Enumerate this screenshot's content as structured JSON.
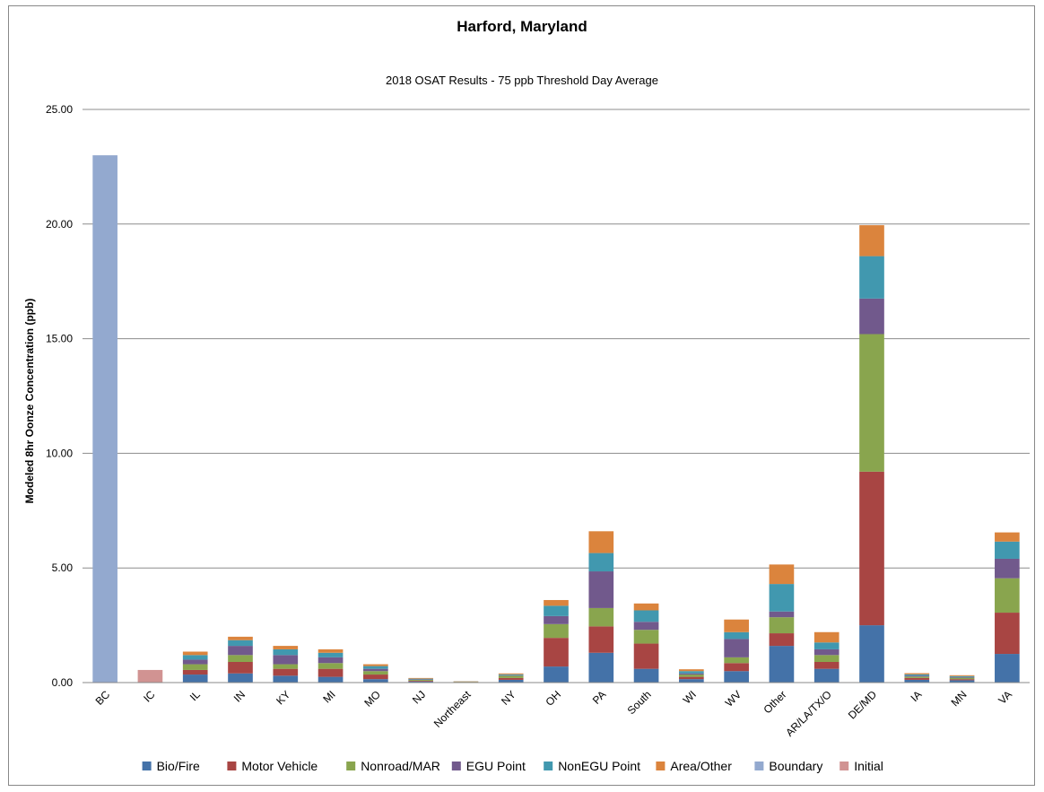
{
  "chart_data": {
    "type": "bar",
    "stacked": true,
    "title": "Harford, Maryland",
    "subtitle": "2018 OSAT Results - 75 ppb Threshold Day Average",
    "xlabel": "",
    "ylabel": "Modeled 8hr Oonze Concentration (ppb)",
    "ylim": [
      0,
      25
    ],
    "yticks": [
      "0.00",
      "5.00",
      "10.00",
      "15.00",
      "20.00",
      "25.00"
    ],
    "grid": true,
    "legend_position": "bottom",
    "categories": [
      "BC",
      "IC",
      "IL",
      "IN",
      "KY",
      "MI",
      "MO",
      "NJ",
      "Northeast",
      "NY",
      "OH",
      "PA",
      "South",
      "WI",
      "WV",
      "Other",
      "AR/LA/TX/O",
      "DE/MD",
      "IA",
      "MN",
      "VA"
    ],
    "series": [
      {
        "name": "Bio/Fire",
        "color": "#4472a8",
        "values": [
          0,
          0,
          0.35,
          0.4,
          0.3,
          0.25,
          0.15,
          0.05,
          0.02,
          0.12,
          0.7,
          1.3,
          0.6,
          0.15,
          0.5,
          1.6,
          0.6,
          2.5,
          0.12,
          0.1,
          1.25
        ]
      },
      {
        "name": "Motor Vehicle",
        "color": "#a84543",
        "values": [
          0,
          0,
          0.2,
          0.5,
          0.3,
          0.35,
          0.2,
          0.03,
          0.01,
          0.08,
          1.25,
          1.15,
          1.1,
          0.1,
          0.35,
          0.55,
          0.3,
          6.7,
          0.08,
          0.05,
          1.8
        ]
      },
      {
        "name": "Nonroad/MAR",
        "color": "#89a54e",
        "values": [
          0,
          0,
          0.25,
          0.3,
          0.2,
          0.25,
          0.15,
          0.04,
          0.01,
          0.1,
          0.6,
          0.8,
          0.6,
          0.1,
          0.25,
          0.7,
          0.3,
          6.0,
          0.06,
          0.06,
          1.5
        ]
      },
      {
        "name": "EGU Point",
        "color": "#71598c",
        "values": [
          0,
          0,
          0.2,
          0.4,
          0.4,
          0.25,
          0.1,
          0.02,
          0.0,
          0.02,
          0.35,
          1.6,
          0.35,
          0.05,
          0.8,
          0.25,
          0.25,
          1.55,
          0.04,
          0.03,
          0.85
        ]
      },
      {
        "name": "NonEGU Point",
        "color": "#4198af",
        "values": [
          0,
          0,
          0.2,
          0.25,
          0.25,
          0.2,
          0.12,
          0.03,
          0.01,
          0.04,
          0.45,
          0.8,
          0.5,
          0.1,
          0.3,
          1.2,
          0.3,
          1.85,
          0.06,
          0.04,
          0.75
        ]
      },
      {
        "name": "Area/Other",
        "color": "#db843d",
        "values": [
          0,
          0,
          0.15,
          0.15,
          0.15,
          0.15,
          0.08,
          0.03,
          0.01,
          0.04,
          0.25,
          0.95,
          0.3,
          0.08,
          0.55,
          0.85,
          0.45,
          1.35,
          0.05,
          0.04,
          0.4
        ]
      },
      {
        "name": "Boundary",
        "color": "#93a9cf",
        "values": [
          23.0,
          0,
          0,
          0,
          0,
          0,
          0,
          0,
          0,
          0,
          0,
          0,
          0,
          0,
          0,
          0,
          0,
          0,
          0,
          0,
          0
        ]
      },
      {
        "name": "Initial",
        "color": "#d19392",
        "values": [
          0,
          0.55,
          0,
          0,
          0,
          0,
          0,
          0,
          0,
          0,
          0,
          0,
          0,
          0,
          0,
          0,
          0,
          0,
          0,
          0,
          0
        ]
      }
    ]
  }
}
